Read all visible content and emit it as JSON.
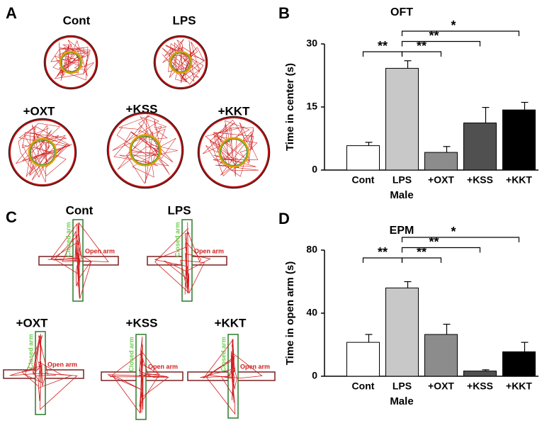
{
  "panels": [
    "A",
    "B",
    "C",
    "D"
  ],
  "oft_groups": [
    "Cont",
    "LPS",
    "+OXT",
    "+KSS",
    "+KKT"
  ],
  "epm_groups": [
    "Cont",
    "LPS",
    "+OXT",
    "+KSS",
    "+KKT"
  ],
  "closed_arm": "Closed arm",
  "open_arm": "Open arm",
  "chart_data": [
    {
      "type": "bar",
      "title": "OFT",
      "ylabel": "Time in center (s)",
      "xlabel": "Male",
      "categories": [
        "Cont",
        "LPS",
        "+OXT",
        "+KSS",
        "+KKT"
      ],
      "values": [
        5.8,
        24.2,
        4.2,
        11.2,
        14.3
      ],
      "errors": [
        0.8,
        1.8,
        1.4,
        3.7,
        1.8
      ],
      "colors": [
        "#ffffff",
        "#c8c8c8",
        "#8c8c8c",
        "#505050",
        "#000000"
      ],
      "ylim": [
        0,
        30
      ],
      "yticks": [
        0,
        15,
        30
      ],
      "annotations": [
        {
          "from": 1,
          "to": 0,
          "label": "**"
        },
        {
          "from": 1,
          "to": 2,
          "label": "**"
        },
        {
          "from": 1,
          "to": 3,
          "label": "**"
        },
        {
          "from": 1,
          "to": 4,
          "label": "*"
        }
      ]
    },
    {
      "type": "bar",
      "title": "EPM",
      "ylabel": "Time in open arm (s)",
      "xlabel": "Male",
      "categories": [
        "Cont",
        "LPS",
        "+OXT",
        "+KSS",
        "+KKT"
      ],
      "values": [
        21.5,
        56,
        26.5,
        3.3,
        15.5
      ],
      "errors": [
        5,
        4,
        6.5,
        0.8,
        6
      ],
      "colors": [
        "#ffffff",
        "#c8c8c8",
        "#8c8c8c",
        "#505050",
        "#000000"
      ],
      "ylim": [
        0,
        80
      ],
      "yticks": [
        0,
        40,
        80
      ],
      "annotations": [
        {
          "from": 1,
          "to": 0,
          "label": "**"
        },
        {
          "from": 1,
          "to": 2,
          "label": "**"
        },
        {
          "from": 1,
          "to": 3,
          "label": "**"
        },
        {
          "from": 1,
          "to": 4,
          "label": "*"
        }
      ]
    }
  ]
}
